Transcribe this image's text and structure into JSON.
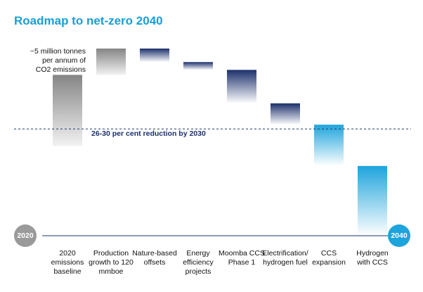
{
  "title": "Roadmap to net-zero 2040",
  "baseline_note": "~5 million tonnes per annum of CO2 emissions",
  "target_label": "26-30 per cent reduction by 2030",
  "start_year": "2020",
  "end_year": "2040",
  "colors": {
    "title": "#1a9ed6",
    "grey_dark": "#8a8a8a",
    "navy": "#1b2f6b",
    "cyan": "#1ea4dc",
    "baseline_line": "#1b3a6b",
    "badge_2020": "#9a9a9a",
    "badge_2040": "#1ea4dc"
  },
  "chart_data": {
    "type": "waterfall",
    "ylabel": "",
    "categories": [
      "2020 emissions baseline",
      "Production growth to 120 mmboe",
      "Nature-based offsets",
      "Energy efficiency projects",
      "Moomba CCS Phase 1",
      "Electrification/ hydrogen fuel",
      "CCS expansion",
      "Hydrogen with CCS"
    ],
    "bars": [
      {
        "start": 0,
        "end": 5.0,
        "color": "grey"
      },
      {
        "start": 5.0,
        "end": 6.85,
        "color": "grey"
      },
      {
        "start": 6.85,
        "end": 5.9,
        "color": "navy"
      },
      {
        "start": 5.9,
        "end": 5.35,
        "color": "navy"
      },
      {
        "start": 5.35,
        "end": 3.0,
        "color": "navy"
      },
      {
        "start": 3.0,
        "end": 1.5,
        "color": "navy"
      },
      {
        "start": 1.5,
        "end": -1.4,
        "color": "cyan"
      },
      {
        "start": -1.4,
        "end": -6.3,
        "color": "cyan"
      }
    ],
    "target_value": 1.2
  }
}
